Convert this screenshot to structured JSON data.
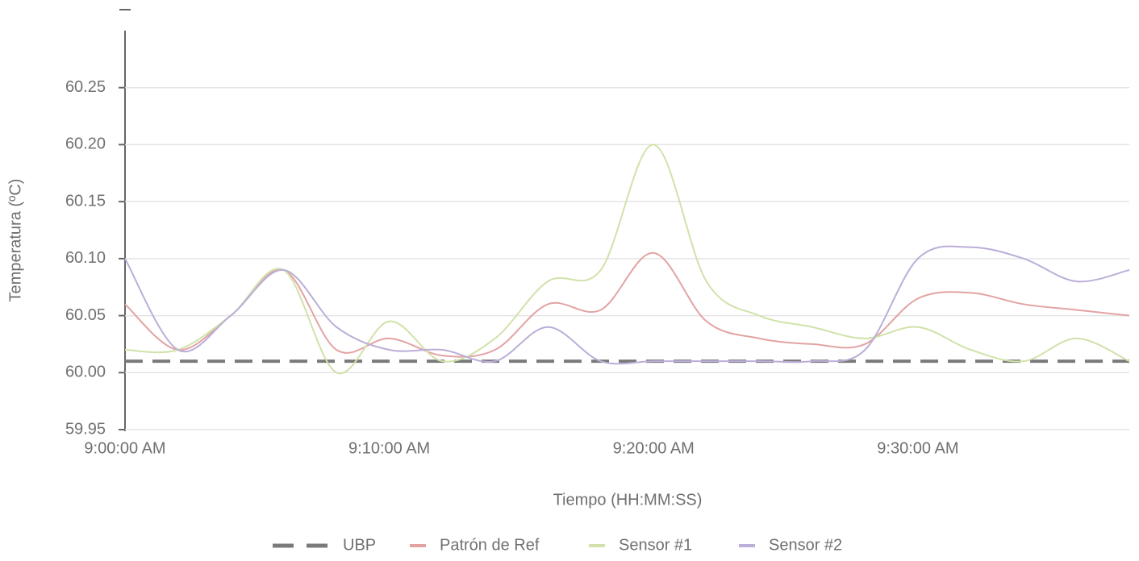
{
  "chart_data": {
    "type": "line",
    "x_axis_title": "Tiempo (HH:MM:SS)",
    "y_axis_title": "Temperatura (ºC)",
    "x": [
      0,
      2,
      4,
      6,
      8,
      10,
      12,
      14,
      16,
      18,
      20,
      22,
      24,
      26,
      28,
      30,
      32,
      34,
      36,
      38
    ],
    "xlim": [
      0,
      38
    ],
    "xticks": [
      {
        "value": 0,
        "label": "9:00:00 AM"
      },
      {
        "value": 10,
        "label": "9:10:00 AM"
      },
      {
        "value": 20,
        "label": "9:20:00 AM"
      },
      {
        "value": 30,
        "label": "9:30:00 AM"
      }
    ],
    "ylim": [
      59.95,
      60.3
    ],
    "yticks": [
      59.95,
      {
        "value": 60.0,
        "label": "60.00"
      },
      60.05,
      {
        "value": 60.1,
        "label": "60.10"
      },
      60.15,
      {
        "value": 60.2,
        "label": "60.20"
      },
      60.25
    ],
    "grid": true,
    "legend": "bottom",
    "series": [
      {
        "name": "UBP",
        "color": "#7a7a7a",
        "dashed": true,
        "values": [
          60.01,
          60.01,
          60.01,
          60.01,
          60.01,
          60.01,
          60.01,
          60.01,
          60.01,
          60.01,
          60.01,
          60.01,
          60.01,
          60.01,
          60.01,
          60.01,
          60.01,
          60.01,
          60.01,
          60.01
        ]
      },
      {
        "name": "Patrón de Ref",
        "color": "#e3a3a3",
        "values": [
          60.06,
          60.02,
          60.05,
          60.09,
          60.02,
          60.03,
          60.015,
          60.02,
          60.06,
          60.055,
          60.105,
          60.045,
          60.03,
          60.025,
          60.025,
          60.065,
          60.07,
          60.06,
          60.055,
          60.05
        ]
      },
      {
        "name": "Sensor #1",
        "color": "#d0e2aa",
        "values": [
          60.02,
          60.02,
          60.05,
          60.09,
          60.0,
          60.045,
          60.01,
          60.03,
          60.08,
          60.09,
          60.2,
          60.08,
          60.05,
          60.04,
          60.03,
          60.04,
          60.02,
          60.01,
          60.03,
          60.01
        ]
      },
      {
        "name": "Sensor #2",
        "color": "#bbaed8",
        "values": [
          60.1,
          60.02,
          60.05,
          60.09,
          60.04,
          60.02,
          60.02,
          60.01,
          60.04,
          60.01,
          60.01,
          60.01,
          60.01,
          60.01,
          60.02,
          60.1,
          60.11,
          60.1,
          60.08,
          60.09
        ]
      }
    ]
  }
}
